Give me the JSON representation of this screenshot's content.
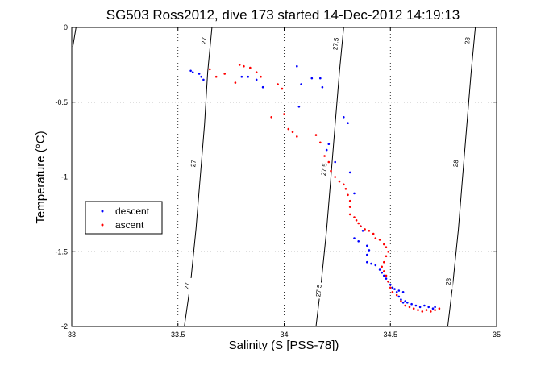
{
  "chart_data": {
    "type": "scatter",
    "title": "SG503 Ross2012, dive 173 started 14-Dec-2012 14:19:13",
    "xlabel": "Salinity (S [PSS-78])",
    "ylabel": "Temperature (°C)",
    "xlim": [
      33,
      35
    ],
    "ylim": [
      -2,
      0
    ],
    "x_ticks": [
      33,
      33.5,
      34,
      34.5,
      35
    ],
    "y_ticks": [
      0,
      -0.5,
      -1,
      -1.5,
      -2
    ],
    "x_tick_labels": [
      "33",
      "33.5",
      "34",
      "34.5",
      "35"
    ],
    "y_tick_labels": [
      "0",
      "-0.5",
      "-1",
      "-1.5",
      "-2"
    ],
    "grid": true,
    "legend_position": "left",
    "density_contours": [
      {
        "value": 27,
        "label": "27",
        "points": [
          [
            33.005,
            -0.13
          ],
          [
            33.02,
            0
          ],
          [
            33.005,
            -0.13
          ]
        ]
      },
      {
        "value": 27,
        "label": "27",
        "points": [
          [
            33.53,
            -2
          ],
          [
            33.56,
            -1.7
          ],
          [
            33.585,
            -1.35
          ],
          [
            33.605,
            -1.0
          ],
          [
            33.625,
            -0.65
          ],
          [
            33.64,
            -0.3
          ],
          [
            33.66,
            0
          ]
        ]
      },
      {
        "value": 27.5,
        "label": "27.5",
        "points": [
          [
            34.15,
            -2
          ],
          [
            34.175,
            -1.7
          ],
          [
            34.2,
            -1.35
          ],
          [
            34.22,
            -1.0
          ],
          [
            34.24,
            -0.65
          ],
          [
            34.26,
            -0.3
          ],
          [
            34.28,
            0
          ]
        ]
      },
      {
        "value": 28,
        "label": "28",
        "points": [
          [
            34.77,
            -2
          ],
          [
            34.795,
            -1.7
          ],
          [
            34.82,
            -1.35
          ],
          [
            34.84,
            -1.0
          ],
          [
            34.86,
            -0.65
          ],
          [
            34.88,
            -0.3
          ],
          [
            34.9,
            0
          ]
        ]
      }
    ],
    "contour_labels": [
      {
        "text": "27",
        "x": 33.625,
        "y": -0.09
      },
      {
        "text": "27",
        "x": 33.575,
        "y": -0.91
      },
      {
        "text": "27",
        "x": 33.545,
        "y": -1.73
      },
      {
        "text": "27.5",
        "x": 34.245,
        "y": -0.11
      },
      {
        "text": "27.5",
        "x": 34.19,
        "y": -0.95
      },
      {
        "text": "27.5",
        "x": 34.165,
        "y": -1.76
      },
      {
        "text": "28",
        "x": 34.865,
        "y": -0.09
      },
      {
        "text": "28",
        "x": 34.81,
        "y": -0.91
      },
      {
        "text": "28",
        "x": 34.775,
        "y": -1.7
      }
    ],
    "series": [
      {
        "name": "descent",
        "color": "#0000ff",
        "marker": ".",
        "points": [
          [
            33.56,
            -0.29
          ],
          [
            33.57,
            -0.3
          ],
          [
            33.6,
            -0.31
          ],
          [
            33.61,
            -0.33
          ],
          [
            33.62,
            -0.35
          ],
          [
            33.8,
            -0.33
          ],
          [
            33.83,
            -0.33
          ],
          [
            33.87,
            -0.35
          ],
          [
            33.9,
            -0.4
          ],
          [
            34.06,
            -0.26
          ],
          [
            34.08,
            -0.38
          ],
          [
            34.13,
            -0.34
          ],
          [
            34.17,
            -0.34
          ],
          [
            34.18,
            -0.4
          ],
          [
            34.07,
            -0.53
          ],
          [
            34.28,
            -0.6
          ],
          [
            34.3,
            -0.64
          ],
          [
            34.21,
            -0.78
          ],
          [
            34.2,
            -0.82
          ],
          [
            34.24,
            -0.9
          ],
          [
            34.31,
            -0.97
          ],
          [
            34.33,
            -1.11
          ],
          [
            34.36,
            -1.33
          ],
          [
            34.37,
            -1.36
          ],
          [
            34.33,
            -1.41
          ],
          [
            34.35,
            -1.43
          ],
          [
            34.39,
            -1.46
          ],
          [
            34.4,
            -1.49
          ],
          [
            34.39,
            -1.52
          ],
          [
            34.39,
            -1.57
          ],
          [
            34.41,
            -1.58
          ],
          [
            34.43,
            -1.59
          ],
          [
            34.45,
            -1.62
          ],
          [
            34.46,
            -1.64
          ],
          [
            34.47,
            -1.66
          ],
          [
            34.48,
            -1.68
          ],
          [
            34.49,
            -1.7
          ],
          [
            34.5,
            -1.72
          ],
          [
            34.51,
            -1.74
          ],
          [
            34.52,
            -1.75
          ],
          [
            34.53,
            -1.77
          ],
          [
            34.54,
            -1.76
          ],
          [
            34.56,
            -1.77
          ],
          [
            34.54,
            -1.8
          ],
          [
            34.55,
            -1.82
          ],
          [
            34.56,
            -1.84
          ],
          [
            34.57,
            -1.83
          ],
          [
            34.58,
            -1.84
          ],
          [
            34.6,
            -1.85
          ],
          [
            34.62,
            -1.86
          ],
          [
            34.64,
            -1.87
          ],
          [
            34.66,
            -1.86
          ],
          [
            34.68,
            -1.87
          ],
          [
            34.7,
            -1.88
          ],
          [
            34.71,
            -1.87
          ]
        ]
      },
      {
        "name": "ascent",
        "color": "#ff0000",
        "marker": ".",
        "points": [
          [
            33.65,
            -0.28
          ],
          [
            33.68,
            -0.33
          ],
          [
            33.72,
            -0.31
          ],
          [
            33.77,
            -0.37
          ],
          [
            33.79,
            -0.25
          ],
          [
            33.81,
            -0.26
          ],
          [
            33.84,
            -0.27
          ],
          [
            33.87,
            -0.3
          ],
          [
            33.89,
            -0.33
          ],
          [
            33.97,
            -0.38
          ],
          [
            33.99,
            -0.41
          ],
          [
            33.94,
            -0.6
          ],
          [
            34.0,
            -0.58
          ],
          [
            34.02,
            -0.68
          ],
          [
            34.04,
            -0.7
          ],
          [
            34.06,
            -0.73
          ],
          [
            34.15,
            -0.72
          ],
          [
            34.17,
            -0.77
          ],
          [
            34.19,
            -0.86
          ],
          [
            34.21,
            -0.9
          ],
          [
            34.22,
            -0.96
          ],
          [
            34.24,
            -1.0
          ],
          [
            34.26,
            -1.03
          ],
          [
            34.28,
            -1.05
          ],
          [
            34.29,
            -1.08
          ],
          [
            34.3,
            -1.12
          ],
          [
            34.31,
            -1.16
          ],
          [
            34.31,
            -1.2
          ],
          [
            34.31,
            -1.25
          ],
          [
            34.33,
            -1.27
          ],
          [
            34.34,
            -1.29
          ],
          [
            34.35,
            -1.31
          ],
          [
            34.36,
            -1.33
          ],
          [
            34.38,
            -1.35
          ],
          [
            34.4,
            -1.36
          ],
          [
            34.42,
            -1.38
          ],
          [
            34.43,
            -1.41
          ],
          [
            34.45,
            -1.42
          ],
          [
            34.47,
            -1.45
          ],
          [
            34.48,
            -1.47
          ],
          [
            34.49,
            -1.5
          ],
          [
            34.48,
            -1.53
          ],
          [
            34.47,
            -1.57
          ],
          [
            34.46,
            -1.6
          ],
          [
            34.47,
            -1.63
          ],
          [
            34.48,
            -1.66
          ],
          [
            34.49,
            -1.7
          ],
          [
            34.5,
            -1.74
          ],
          [
            34.51,
            -1.77
          ],
          [
            34.53,
            -1.79
          ],
          [
            34.55,
            -1.83
          ],
          [
            34.57,
            -1.86
          ],
          [
            34.59,
            -1.87
          ],
          [
            34.61,
            -1.88
          ],
          [
            34.63,
            -1.89
          ],
          [
            34.65,
            -1.9
          ],
          [
            34.67,
            -1.89
          ],
          [
            34.69,
            -1.9
          ],
          [
            34.71,
            -1.89
          ],
          [
            34.73,
            -1.88
          ]
        ]
      }
    ]
  }
}
